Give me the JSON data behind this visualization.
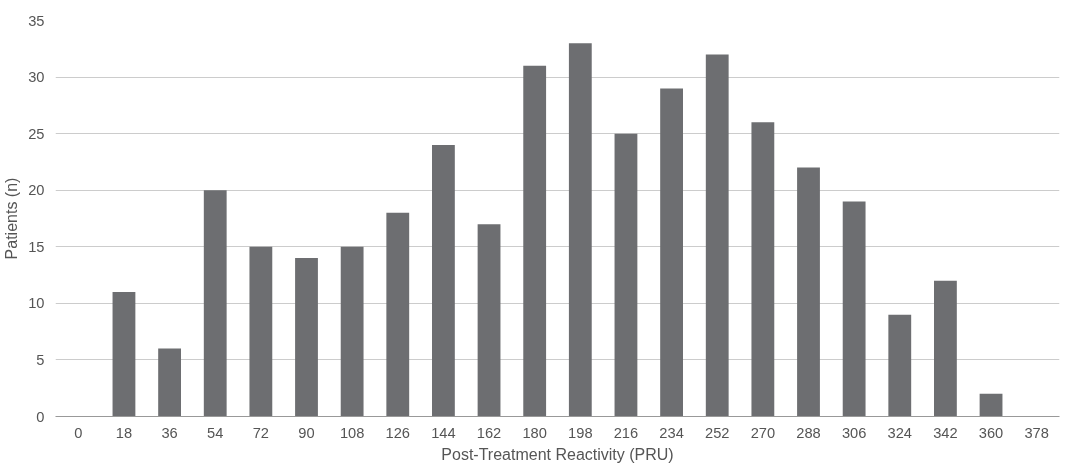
{
  "chart_data": {
    "type": "bar",
    "xlabel": "Post-Treatment Reactivity (PRU)",
    "ylabel": "Patients (n)",
    "categories": [
      "0",
      "18",
      "36",
      "54",
      "72",
      "90",
      "108",
      "126",
      "144",
      "162",
      "180",
      "198",
      "216",
      "234",
      "252",
      "270",
      "288",
      "306",
      "324",
      "342",
      "360",
      "378"
    ],
    "values": [
      0,
      11,
      6,
      20,
      15,
      14,
      15,
      18,
      24,
      17,
      31,
      33,
      25,
      29,
      32,
      26,
      22,
      19,
      9,
      12,
      2,
      0
    ],
    "color": "#6d6e71",
    "ylim": [
      0,
      35
    ],
    "yticks": [
      0,
      5,
      10,
      15,
      20,
      25,
      30,
      35
    ],
    "grid": "y"
  }
}
